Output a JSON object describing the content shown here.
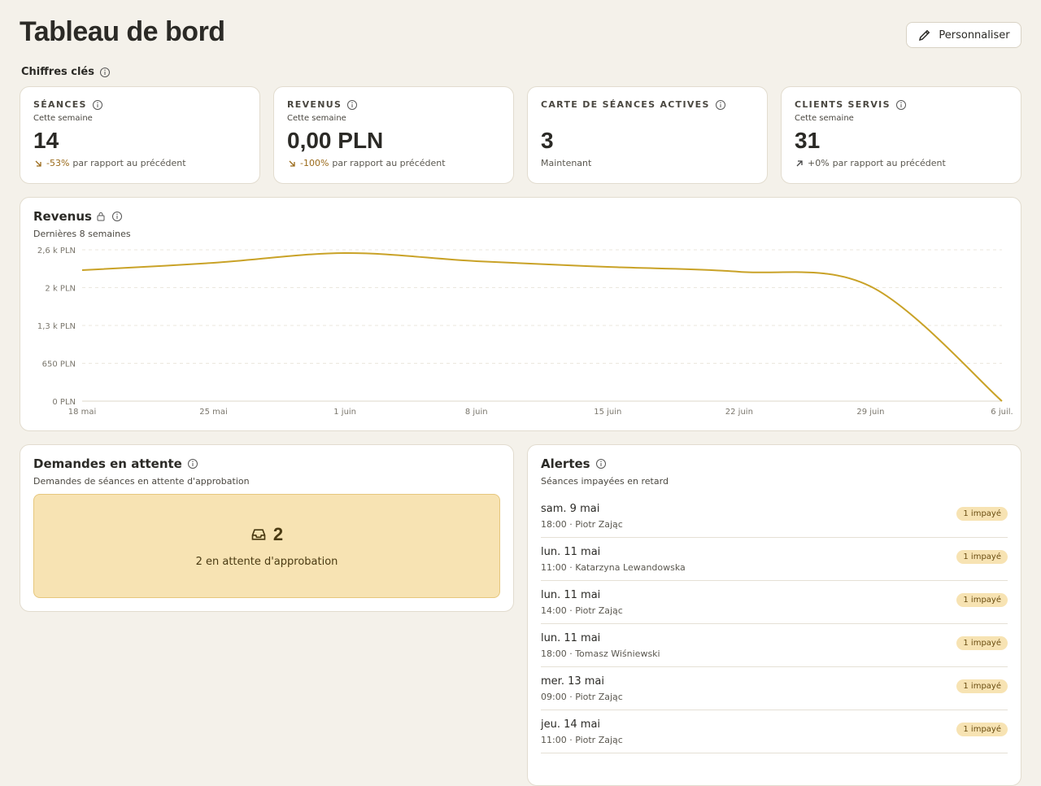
{
  "header": {
    "title": "Tableau de bord",
    "button": "Personnaliser"
  },
  "key_figures": {
    "title": "Chiffres clés",
    "cards": [
      {
        "label": "SÉANCES",
        "subtitle": "Cette semaine",
        "value": "14",
        "change": "-53%",
        "comparison": "par rapport au précédent"
      },
      {
        "label": "REVENUS",
        "subtitle": "Cette semaine",
        "value": "0,00 PLN",
        "change": "-100%",
        "comparison": "par rapport au précédent"
      },
      {
        "label": "CARTE DE SÉANCES ACTIVES",
        "value": "3",
        "note": "Maintenant"
      },
      {
        "label": "CLIENTS SERVIS",
        "subtitle": "Cette semaine",
        "value": "31",
        "change": "+0%",
        "comparison": "par rapport au précédent"
      }
    ]
  },
  "chart_data": {
    "type": "line",
    "title": "Revenus",
    "subtitle": "Dernières 8 semaines",
    "color": "#c9a227",
    "categories": [
      "18 mai",
      "25 mai",
      "1 juin",
      "8 juin",
      "15 juin",
      "22 juin",
      "29 juin",
      "6 juil."
    ],
    "values": [
      2250,
      2376,
      2544,
      2404,
      2306,
      2223,
      1971,
      0
    ],
    "ylim": [
      0,
      2600
    ],
    "yticks": [
      {
        "value": 0,
        "label": "0 PLN"
      },
      {
        "value": 650,
        "label": "650 PLN"
      },
      {
        "value": 1300,
        "label": "1,3 k PLN"
      },
      {
        "value": 1950,
        "label": "2 k PLN"
      },
      {
        "value": 2600,
        "label": "2,6 k PLN"
      }
    ],
    "grid": true
  },
  "pending": {
    "title": "Demandes en attente",
    "subtitle": "Demandes de séances en attente d'approbation",
    "count": "2",
    "text": "2 en attente d'approbation"
  },
  "alerts": {
    "title": "Alertes",
    "subtitle": "Séances impayées en retard",
    "items": [
      {
        "date": "sam. 9 mai",
        "detail": "18:00 · Piotr Zając",
        "badge": "1 impayé"
      },
      {
        "date": "lun. 11 mai",
        "detail": "11:00 · Katarzyna Lewandowska",
        "badge": "1 impayé"
      },
      {
        "date": "lun. 11 mai",
        "detail": "14:00 · Piotr Zając",
        "badge": "1 impayé"
      },
      {
        "date": "lun. 11 mai",
        "detail": "18:00 · Tomasz Wiśniewski",
        "badge": "1 impayé"
      },
      {
        "date": "mer. 13 mai",
        "detail": "09:00 · Piotr Zając",
        "badge": "1 impayé"
      },
      {
        "date": "jeu. 14 mai",
        "detail": "11:00 · Piotr Zając",
        "badge": "1 impayé"
      }
    ]
  }
}
